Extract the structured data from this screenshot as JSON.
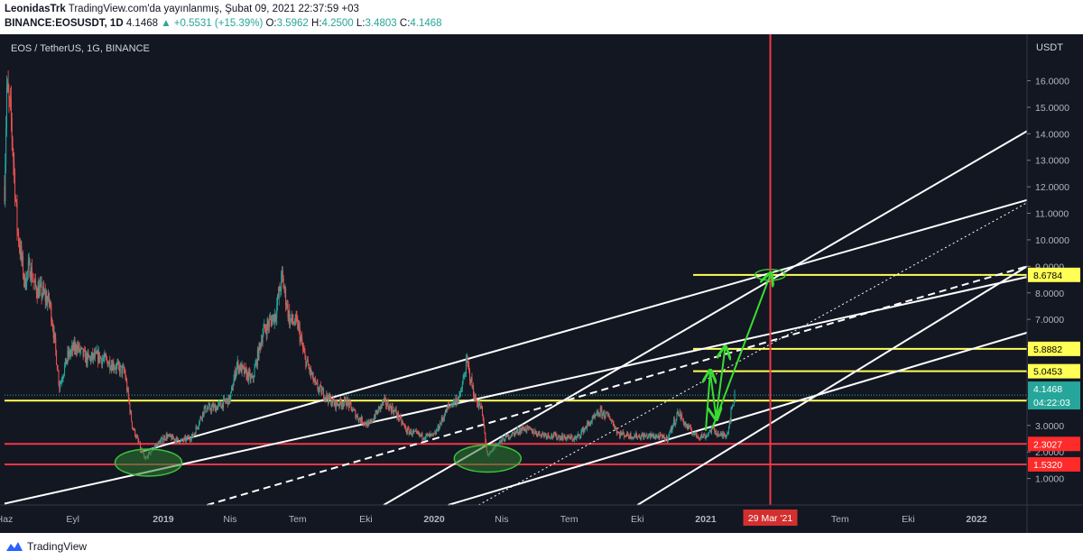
{
  "header": {
    "author": "LeonidasTrk",
    "published": "TradingView.com'da yayınlanmış, Şubat 09, 2021 22:37:59 +03",
    "symbol": "BINANCE:EOSUSDT, 1D",
    "last": "4.1468",
    "change": "▲ +0.5531 (+15.39%)",
    "o_label": "O:",
    "o": "3.5962",
    "h_label": "H:",
    "h": "4.2500",
    "l_label": "L:",
    "l": "3.4803",
    "c_label": "C:",
    "c": "4.1468"
  },
  "chart_title": "EOS / TetherUS, 1G, BINANCE",
  "axis_unit": "USDT",
  "countdown": "04:22:03",
  "footer": {
    "brand": "TradingView"
  },
  "colors": {
    "background": "#131722",
    "up": "#26a69a",
    "down": "#ef5350",
    "support": "#f23645",
    "target": "#ffff55",
    "trend": "#ffffff",
    "arrow": "#3adc32",
    "ellipse": "#2e7d32"
  },
  "chart_data": {
    "type": "candlestick",
    "title": "EOS / TetherUS, 1G, BINANCE",
    "ylim": [
      0,
      16.8
    ],
    "y_ticks": [
      "1.0000",
      "2.0000",
      "3.0000",
      "4.0000",
      "5.0000",
      "6.0000",
      "7.0000",
      "8.0000",
      "9.0000",
      "10.0000",
      "11.0000",
      "12.0000",
      "13.0000",
      "14.0000",
      "15.0000",
      "16.0000"
    ],
    "x_ticks": [
      "Haz",
      "Eyl",
      "2019",
      "Nis",
      "Tem",
      "Eki",
      "2020",
      "Nis",
      "Tem",
      "Eki",
      "2021",
      "Tem",
      "Eki",
      "2022"
    ],
    "x_tick_dates": [
      "2018-06-01",
      "2018-09-01",
      "2019-01-01",
      "2019-04-01",
      "2019-07-01",
      "2019-10-01",
      "2020-01-01",
      "2020-04-01",
      "2020-07-01",
      "2020-10-01",
      "2021-01-01",
      "2021-07-01",
      "2021-10-01",
      "2022-01-01"
    ],
    "x_range": [
      "2018-06-01",
      "2022-03-10"
    ],
    "price_path": [
      [
        "2018-06-01",
        12.0
      ],
      [
        "2018-06-04",
        15.7
      ],
      [
        "2018-06-10",
        14.5
      ],
      [
        "2018-06-18",
        10.5
      ],
      [
        "2018-06-28",
        8.4
      ],
      [
        "2018-07-05",
        9.0
      ],
      [
        "2018-07-12",
        8.2
      ],
      [
        "2018-07-22",
        8.0
      ],
      [
        "2018-08-01",
        7.6
      ],
      [
        "2018-08-05",
        6.8
      ],
      [
        "2018-08-14",
        4.5
      ],
      [
        "2018-08-25",
        5.6
      ],
      [
        "2018-09-05",
        6.0
      ],
      [
        "2018-09-20",
        5.5
      ],
      [
        "2018-10-05",
        5.6
      ],
      [
        "2018-10-25",
        5.3
      ],
      [
        "2018-11-10",
        5.0
      ],
      [
        "2018-11-20",
        3.0
      ],
      [
        "2018-12-07",
        1.7
      ],
      [
        "2018-12-20",
        2.2
      ],
      [
        "2019-01-05",
        2.6
      ],
      [
        "2019-01-25",
        2.4
      ],
      [
        "2019-02-10",
        2.6
      ],
      [
        "2019-02-25",
        3.6
      ],
      [
        "2019-03-15",
        3.7
      ],
      [
        "2019-04-01",
        4.0
      ],
      [
        "2019-04-10",
        5.3
      ],
      [
        "2019-05-01",
        4.7
      ],
      [
        "2019-05-15",
        6.5
      ],
      [
        "2019-06-01",
        7.2
      ],
      [
        "2019-06-10",
        8.6
      ],
      [
        "2019-06-20",
        7.0
      ],
      [
        "2019-07-01",
        6.8
      ],
      [
        "2019-07-10",
        5.6
      ],
      [
        "2019-07-25",
        4.5
      ],
      [
        "2019-08-05",
        4.2
      ],
      [
        "2019-08-20",
        3.8
      ],
      [
        "2019-09-05",
        3.9
      ],
      [
        "2019-09-20",
        3.3
      ],
      [
        "2019-10-05",
        3.0
      ],
      [
        "2019-10-25",
        3.9
      ],
      [
        "2019-11-10",
        3.5
      ],
      [
        "2019-11-25",
        2.8
      ],
      [
        "2019-12-15",
        2.6
      ],
      [
        "2020-01-01",
        2.6
      ],
      [
        "2020-01-20",
        3.7
      ],
      [
        "2020-02-05",
        4.1
      ],
      [
        "2020-02-14",
        5.4
      ],
      [
        "2020-02-25",
        4.0
      ],
      [
        "2020-03-05",
        3.6
      ],
      [
        "2020-03-13",
        1.8
      ],
      [
        "2020-03-25",
        2.3
      ],
      [
        "2020-04-10",
        2.6
      ],
      [
        "2020-05-01",
        2.9
      ],
      [
        "2020-05-20",
        2.7
      ],
      [
        "2020-06-10",
        2.6
      ],
      [
        "2020-07-10",
        2.5
      ],
      [
        "2020-07-25",
        3.0
      ],
      [
        "2020-08-12",
        3.5
      ],
      [
        "2020-08-25",
        3.3
      ],
      [
        "2020-09-05",
        2.7
      ],
      [
        "2020-09-25",
        2.6
      ],
      [
        "2020-10-10",
        2.6
      ],
      [
        "2020-10-25",
        2.6
      ],
      [
        "2020-11-10",
        2.5
      ],
      [
        "2020-11-25",
        3.5
      ],
      [
        "2020-12-05",
        3.0
      ],
      [
        "2020-12-20",
        2.6
      ],
      [
        "2021-01-01",
        2.6
      ],
      [
        "2021-01-10",
        2.9
      ],
      [
        "2021-01-20",
        2.6
      ],
      [
        "2021-01-30",
        2.7
      ],
      [
        "2021-02-05",
        3.6
      ],
      [
        "2021-02-09",
        4.1468
      ]
    ],
    "support_lines": [
      {
        "label": "2.3027",
        "value": 2.3027
      },
      {
        "label": "1.5320",
        "value": 1.532
      }
    ],
    "target_lines": [
      {
        "label": "8.6784",
        "value": 8.6784,
        "from": "2020-12-15"
      },
      {
        "label": "5.8882",
        "value": 5.8882,
        "from": "2020-12-15"
      },
      {
        "label": "5.0453",
        "value": 5.0453,
        "from": "2020-12-15"
      },
      {
        "label": "3.9372",
        "value": 3.9372,
        "from": "2018-06-01"
      }
    ],
    "current_price": {
      "label": "4.1468",
      "value": 4.1468
    },
    "vertical_marker": {
      "label": "29 Mar '21",
      "date": "2021-03-29"
    },
    "trend_lines": [
      {
        "from": [
          "2018-06-01",
          0.05
        ],
        "to": [
          "2022-03-10",
          8.6
        ],
        "style": "solid"
      },
      {
        "from": [
          "2019-03-01",
          0.0
        ],
        "to": [
          "2022-03-10",
          9.0
        ],
        "style": "dashed"
      },
      {
        "from": [
          "2019-10-25",
          0.0
        ],
        "to": [
          "2022-03-10",
          14.1
        ],
        "style": "solid"
      },
      {
        "from": [
          "2020-01-20",
          0.0
        ],
        "to": [
          "2022-03-10",
          6.5
        ],
        "style": "solid"
      },
      {
        "from": [
          "2020-10-01",
          0.0
        ],
        "to": [
          "2022-03-10",
          9.0
        ],
        "style": "solid"
      },
      {
        "from": [
          "2020-03-01",
          0.0
        ],
        "to": [
          "2022-03-10",
          11.4
        ],
        "style": "dotted"
      },
      {
        "from": [
          "2018-12-01",
          2.0
        ],
        "to": [
          "2022-03-10",
          11.5
        ],
        "style": "solid"
      }
    ],
    "arrows": [
      {
        "from": [
          "2021-01-01",
          2.8
        ],
        "to": [
          "2021-01-07",
          5.0
        ]
      },
      {
        "from": [
          "2021-01-07",
          5.0
        ],
        "to": [
          "2021-01-15",
          3.3
        ]
      },
      {
        "from": [
          "2021-01-15",
          3.3
        ],
        "to": [
          "2021-01-27",
          5.9
        ]
      },
      {
        "from": [
          "2021-01-10",
          2.9
        ],
        "to": [
          "2021-03-29",
          8.68
        ]
      }
    ],
    "ellipses": [
      {
        "center": [
          "2018-12-12",
          1.6
        ]
      },
      {
        "center": [
          "2020-03-13",
          1.75
        ]
      },
      {
        "center": [
          "2021-03-29",
          8.68
        ]
      }
    ]
  }
}
